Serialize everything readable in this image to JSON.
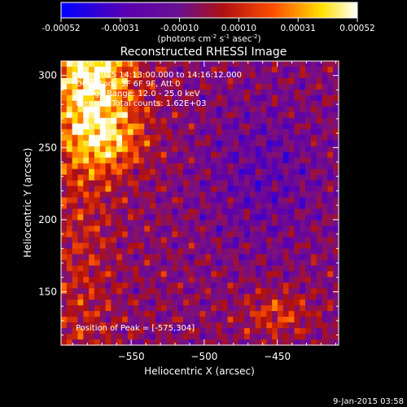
{
  "chart_data": {
    "type": "heatmap",
    "title": "Reconstructed RHESSI Image",
    "xlabel": "Heliocentric X (arcsec)",
    "ylabel": "Heliocentric Y (arcsec)",
    "xlim": [
      -598,
      -408
    ],
    "ylim": [
      113,
      310
    ],
    "x_ticks": [
      -550,
      -500,
      -450
    ],
    "y_ticks": [
      150,
      200,
      250,
      300
    ],
    "colorbar": {
      "min": -0.00052,
      "max": 0.00052,
      "ticks": [
        "-0.00052",
        "-0.00031",
        "-0.00010",
        "0.00010",
        "0.00031",
        "0.00052"
      ],
      "unit_label": "(photons cm<sup>-2</sup> s<sup>-1</sup> asec<sup>-2</sup>)",
      "colors": [
        "#0000ff",
        "#5a00b0",
        "#7a1080",
        "#b01010",
        "#ff5000",
        "#ffe000",
        "#ffffff"
      ]
    },
    "annotations": [
      "8-Jan-2015 14:13:00.000 to 14:16:12.000",
      "Detectors: 3F 6F 9F, Att 0",
      "Energy Range: 12.0 - 25.0 keV",
      "Clean     Total counts: 1.62E+03"
    ],
    "peak_text": "Position of Peak = [-575,304]",
    "peak_position": [
      -575,
      304
    ],
    "timestamp": "9-Jan-2015 03:58"
  }
}
